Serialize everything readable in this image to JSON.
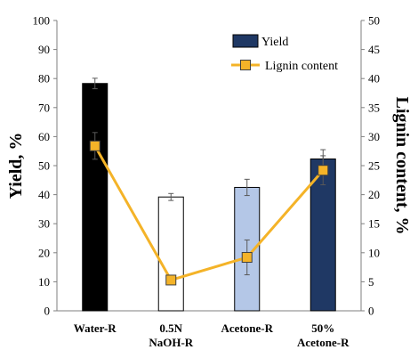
{
  "chart_data": {
    "type": "bar",
    "categories": [
      [
        "Water-R"
      ],
      [
        "0.5N",
        "NaOH-R"
      ],
      [
        "Acetone-R"
      ],
      [
        "50%",
        "Acetone-R"
      ]
    ],
    "series": [
      {
        "name": "Yield",
        "type": "bar",
        "axis": "left",
        "values": [
          78.3,
          39.2,
          42.5,
          52.3
        ],
        "errors": [
          1.8,
          1.2,
          2.8,
          3.2
        ],
        "colors": [
          "#000000",
          "#ffffff",
          "#b4c7e7",
          "#1f3864"
        ]
      },
      {
        "name": "Lignin content",
        "type": "line",
        "axis": "right",
        "values": [
          28.4,
          5.3,
          9.2,
          24.2
        ],
        "errors": [
          2.3,
          0.6,
          3.0,
          2.5
        ],
        "line_color": "#f4b328",
        "marker_color": "#f4b328"
      }
    ],
    "ylabel": "Yield, %",
    "y2label": "Lignin content, %",
    "ylim": [
      0,
      100
    ],
    "y2lim": [
      0,
      50
    ],
    "yticks": [
      "0",
      "10",
      "20",
      "30",
      "40",
      "50",
      "60",
      "70",
      "80",
      "90",
      "100"
    ],
    "y2ticks": [
      "0",
      "5",
      "10",
      "15",
      "20",
      "25",
      "30",
      "35",
      "40",
      "45",
      "50"
    ],
    "legend": {
      "placement": "top-right",
      "entries": [
        "Yield",
        "Lignin content"
      ]
    },
    "grid": false
  }
}
